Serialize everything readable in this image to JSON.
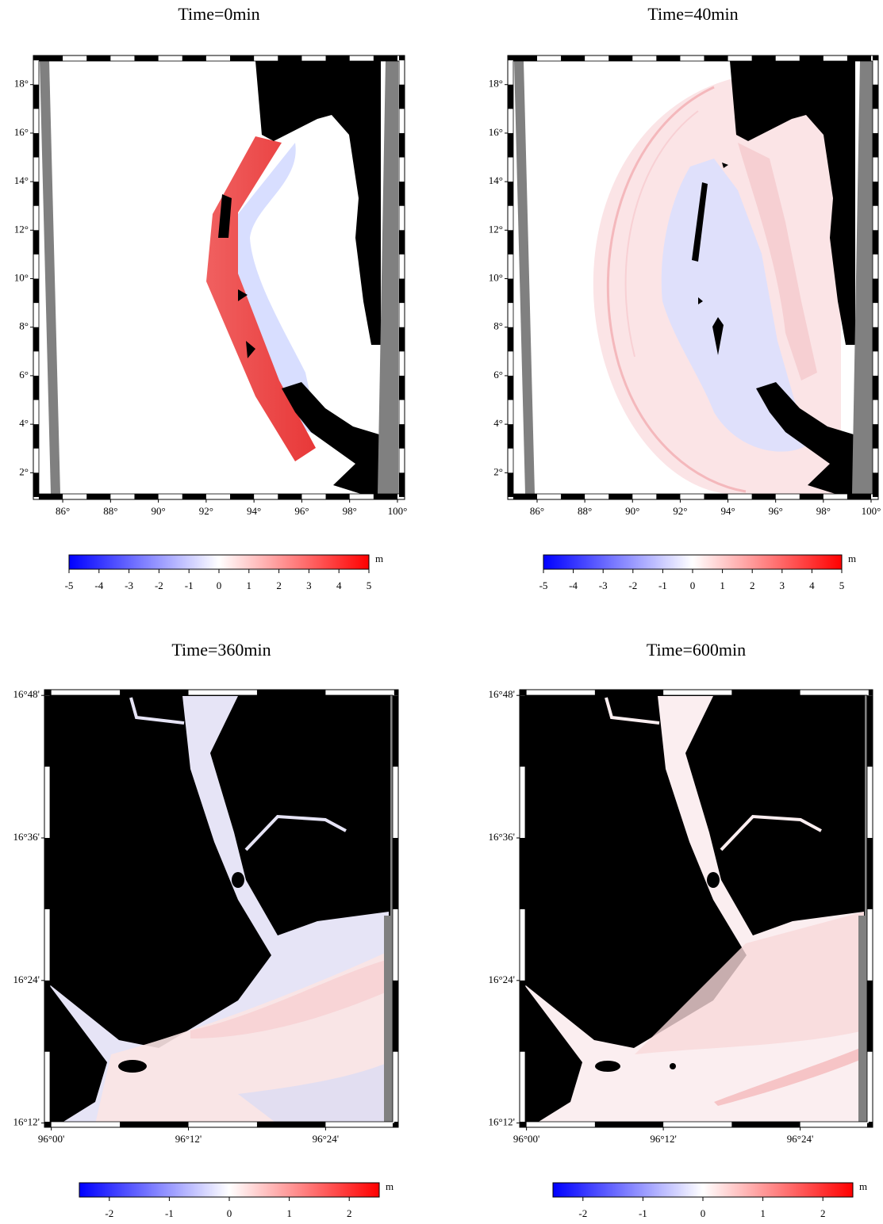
{
  "panels": [
    {
      "title": "Time=0min",
      "xlim": [
        84.77,
        100.3
      ],
      "ylim": [
        0.9,
        19.2
      ],
      "xticks": [
        {
          "value": 86,
          "label": "86°"
        },
        {
          "value": 88,
          "label": "88°"
        },
        {
          "value": 90,
          "label": "90°"
        },
        {
          "value": 92,
          "label": "92°"
        },
        {
          "value": 94,
          "label": "94°"
        },
        {
          "value": 96,
          "label": "96°"
        },
        {
          "value": 98,
          "label": "98°"
        },
        {
          "value": 100,
          "label": "100°"
        }
      ],
      "yticks": [
        {
          "value": 2,
          "label": "2°"
        },
        {
          "value": 4,
          "label": "4°"
        },
        {
          "value": 6,
          "label": "6°"
        },
        {
          "value": 8,
          "label": "8°"
        },
        {
          "value": 10,
          "label": "10°"
        },
        {
          "value": 12,
          "label": "12°"
        },
        {
          "value": 14,
          "label": "14°"
        },
        {
          "value": 16,
          "label": "16°"
        },
        {
          "value": 18,
          "label": "18°"
        }
      ],
      "colorbar": {
        "range": [
          -5,
          5
        ],
        "ticks": [
          -5,
          -4,
          -3,
          -2,
          -1,
          0,
          1,
          2,
          3,
          4,
          5
        ],
        "unit": "m"
      }
    },
    {
      "title": "Time=40min",
      "xlim": [
        84.77,
        100.3
      ],
      "ylim": [
        0.9,
        19.2
      ],
      "xticks": [
        {
          "value": 86,
          "label": "86°"
        },
        {
          "value": 88,
          "label": "88°"
        },
        {
          "value": 90,
          "label": "90°"
        },
        {
          "value": 92,
          "label": "92°"
        },
        {
          "value": 94,
          "label": "94°"
        },
        {
          "value": 96,
          "label": "96°"
        },
        {
          "value": 98,
          "label": "98°"
        },
        {
          "value": 100,
          "label": "100°"
        }
      ],
      "yticks": [
        {
          "value": 2,
          "label": "2°"
        },
        {
          "value": 4,
          "label": "4°"
        },
        {
          "value": 6,
          "label": "6°"
        },
        {
          "value": 8,
          "label": "8°"
        },
        {
          "value": 10,
          "label": "10°"
        },
        {
          "value": 12,
          "label": "12°"
        },
        {
          "value": 14,
          "label": "14°"
        },
        {
          "value": 16,
          "label": "16°"
        },
        {
          "value": 18,
          "label": "18°"
        }
      ],
      "colorbar": {
        "range": [
          -5,
          5
        ],
        "ticks": [
          -5,
          -4,
          -3,
          -2,
          -1,
          0,
          1,
          2,
          3,
          4,
          5
        ],
        "unit": "m"
      }
    },
    {
      "title": "Time=360min",
      "xlim": [
        95.99,
        96.506
      ],
      "ylim": [
        16.194,
        16.808
      ],
      "xticks": [
        {
          "value": 96,
          "label": "96°00'"
        },
        {
          "value": 96.2,
          "label": "96°12'"
        },
        {
          "value": 96.4,
          "label": "96°24'"
        }
      ],
      "yticks": [
        {
          "value": 16.2,
          "label": "16°12'"
        },
        {
          "value": 16.4,
          "label": "16°24'"
        },
        {
          "value": 16.6,
          "label": "16°36'"
        },
        {
          "value": 16.8,
          "label": "16°48'"
        }
      ],
      "colorbar": {
        "range": [
          -2.5,
          2.5
        ],
        "ticks": [
          -2,
          -1,
          0,
          1,
          2
        ],
        "unit": "m"
      }
    },
    {
      "title": "Time=600min",
      "xlim": [
        95.99,
        96.506
      ],
      "ylim": [
        16.194,
        16.808
      ],
      "xticks": [
        {
          "value": 96,
          "label": "96°00'"
        },
        {
          "value": 96.2,
          "label": "96°12'"
        },
        {
          "value": 96.4,
          "label": "96°24'"
        }
      ],
      "yticks": [
        {
          "value": 16.2,
          "label": "16°12'"
        },
        {
          "value": 16.4,
          "label": "16°24'"
        },
        {
          "value": 16.6,
          "label": "16°36'"
        },
        {
          "value": 16.8,
          "label": "16°48'"
        }
      ],
      "colorbar": {
        "range": [
          -2.5,
          2.5
        ],
        "ticks": [
          -2,
          -1,
          0,
          1,
          2
        ],
        "unit": "m"
      }
    }
  ]
}
